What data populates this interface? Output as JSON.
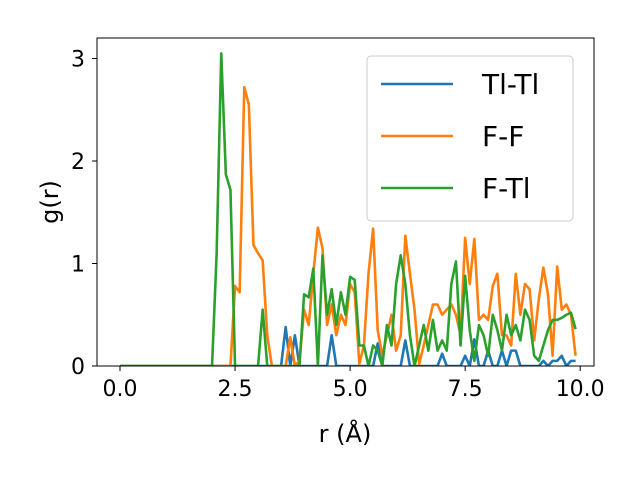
{
  "chart_data": {
    "type": "line",
    "title": "",
    "xlabel": "r (Å)",
    "ylabel": "g(r)",
    "xlim": [
      -0.5,
      10.3
    ],
    "ylim": [
      0,
      3.2
    ],
    "xticks": [
      0.0,
      2.5,
      5.0,
      7.5,
      10.0
    ],
    "xtick_labels": [
      "0.0",
      "2.5",
      "5.0",
      "7.5",
      "10.0"
    ],
    "yticks": [
      0,
      1,
      2,
      3
    ],
    "ytick_labels": [
      "0",
      "1",
      "2",
      "3"
    ],
    "grid": false,
    "legend_position": "top-right",
    "colors": {
      "Tl-Tl": "#1f77b4",
      "F-F": "#ff7f0e",
      "F-Tl": "#2ca02c"
    },
    "series": [
      {
        "name": "Tl-Tl",
        "color": "#1f77b4",
        "x": [
          0.0,
          3.5,
          3.6,
          3.7,
          3.8,
          3.9,
          4.0,
          4.5,
          4.6,
          4.7,
          5.0,
          5.5,
          5.6,
          5.7,
          5.8,
          6.1,
          6.2,
          6.3,
          6.4,
          6.6,
          6.9,
          7.0,
          7.1,
          7.2,
          7.3,
          7.4,
          7.5,
          7.6,
          7.7,
          7.8,
          7.9,
          8.0,
          8.1,
          8.2,
          8.3,
          8.4,
          8.5,
          8.6,
          8.7,
          8.8,
          9.1,
          9.2,
          9.3,
          9.4,
          9.5,
          9.6,
          9.7,
          9.8,
          9.9
        ],
        "y": [
          0,
          0,
          0.38,
          0,
          0.3,
          0,
          0,
          0,
          0.3,
          0,
          0,
          0,
          0.22,
          0,
          0,
          0,
          0.25,
          0,
          0,
          0,
          0,
          0.12,
          0,
          0,
          0,
          0,
          0.1,
          0,
          0.26,
          0,
          0,
          0.15,
          0,
          0,
          0.15,
          0,
          0.15,
          0.15,
          0,
          0,
          0,
          0.05,
          0,
          0.05,
          0.05,
          0.1,
          0,
          0.05,
          0.05
        ]
      },
      {
        "name": "F-F",
        "color": "#ff7f0e",
        "x": [
          0.0,
          2.4,
          2.5,
          2.6,
          2.7,
          2.8,
          2.9,
          3.0,
          3.1,
          3.2,
          3.3,
          3.6,
          3.7,
          3.8,
          3.9,
          4.0,
          4.1,
          4.2,
          4.3,
          4.4,
          4.5,
          4.6,
          4.7,
          4.8,
          4.9,
          5.0,
          5.1,
          5.2,
          5.3,
          5.4,
          5.5,
          5.6,
          5.7,
          5.8,
          5.9,
          6.0,
          6.1,
          6.2,
          6.3,
          6.4,
          6.5,
          6.6,
          6.7,
          6.8,
          6.9,
          7.0,
          7.1,
          7.2,
          7.3,
          7.4,
          7.5,
          7.6,
          7.7,
          7.8,
          7.9,
          8.0,
          8.1,
          8.2,
          8.3,
          8.4,
          8.5,
          8.6,
          8.7,
          8.8,
          8.9,
          9.0,
          9.1,
          9.2,
          9.3,
          9.4,
          9.5,
          9.6,
          9.7,
          9.8,
          9.9
        ],
        "y": [
          0,
          0,
          0.78,
          0.72,
          2.72,
          2.55,
          1.18,
          1.1,
          1.03,
          0.3,
          0,
          0,
          0.28,
          0,
          0.05,
          0.55,
          0.4,
          0.9,
          1.35,
          1.15,
          0.4,
          0.6,
          0.3,
          0.5,
          0.4,
          0.8,
          0.72,
          0.02,
          0.2,
          0.9,
          1.34,
          0.35,
          0.1,
          0.3,
          0.5,
          0.15,
          0.3,
          1.27,
          0.9,
          0.55,
          0.02,
          0.2,
          0.4,
          0.6,
          0.6,
          0.5,
          0.55,
          0.6,
          0.5,
          0.3,
          1.25,
          0.8,
          1.24,
          0.45,
          0.5,
          0.45,
          0.78,
          0.9,
          0.3,
          0.3,
          0.2,
          0.9,
          0.5,
          0.8,
          0.75,
          0.25,
          0.65,
          0.96,
          0.7,
          0.1,
          0.97,
          0.55,
          0.6,
          0.5,
          0.1
        ]
      },
      {
        "name": "F-Tl",
        "color": "#2ca02c",
        "x": [
          0.0,
          2.0,
          2.1,
          2.2,
          2.3,
          2.4,
          2.5,
          2.6,
          3.0,
          3.1,
          3.2,
          3.3,
          3.9,
          4.0,
          4.1,
          4.2,
          4.3,
          4.4,
          4.5,
          4.6,
          4.7,
          4.8,
          4.9,
          5.0,
          5.1,
          5.2,
          5.3,
          5.4,
          5.5,
          5.6,
          5.7,
          5.8,
          5.9,
          6.0,
          6.1,
          6.2,
          6.3,
          6.4,
          6.5,
          6.6,
          6.7,
          6.8,
          6.9,
          7.0,
          7.1,
          7.2,
          7.3,
          7.4,
          7.5,
          7.6,
          7.7,
          7.8,
          7.9,
          8.0,
          8.1,
          8.2,
          8.3,
          8.4,
          8.5,
          8.6,
          8.7,
          8.8,
          8.9,
          9.0,
          9.1,
          9.2,
          9.3,
          9.4,
          9.5,
          9.6,
          9.7,
          9.8,
          9.9
        ],
        "y": [
          0,
          0,
          1.1,
          3.05,
          1.87,
          1.72,
          0,
          0,
          0,
          0.55,
          0,
          0,
          0,
          0.7,
          0.67,
          0.95,
          0,
          1.08,
          0.5,
          0.75,
          0.4,
          0.72,
          0.5,
          0.87,
          0.84,
          0.2,
          0.2,
          0,
          0.2,
          0.15,
          0,
          0.4,
          0.2,
          0.8,
          1.08,
          0.8,
          0.3,
          0,
          0.2,
          0.4,
          0.15,
          0.45,
          0.15,
          0.25,
          0.15,
          0.8,
          1.02,
          0.2,
          0.88,
          0.35,
          0.05,
          0.4,
          0.3,
          0.1,
          0.5,
          0.35,
          0.15,
          0.5,
          0.3,
          0.4,
          0.25,
          0.55,
          0.45,
          0.1,
          0.05,
          0.2,
          0.35,
          0.45,
          0.45,
          0.47,
          0.5,
          0.52,
          0.36
        ]
      }
    ]
  }
}
